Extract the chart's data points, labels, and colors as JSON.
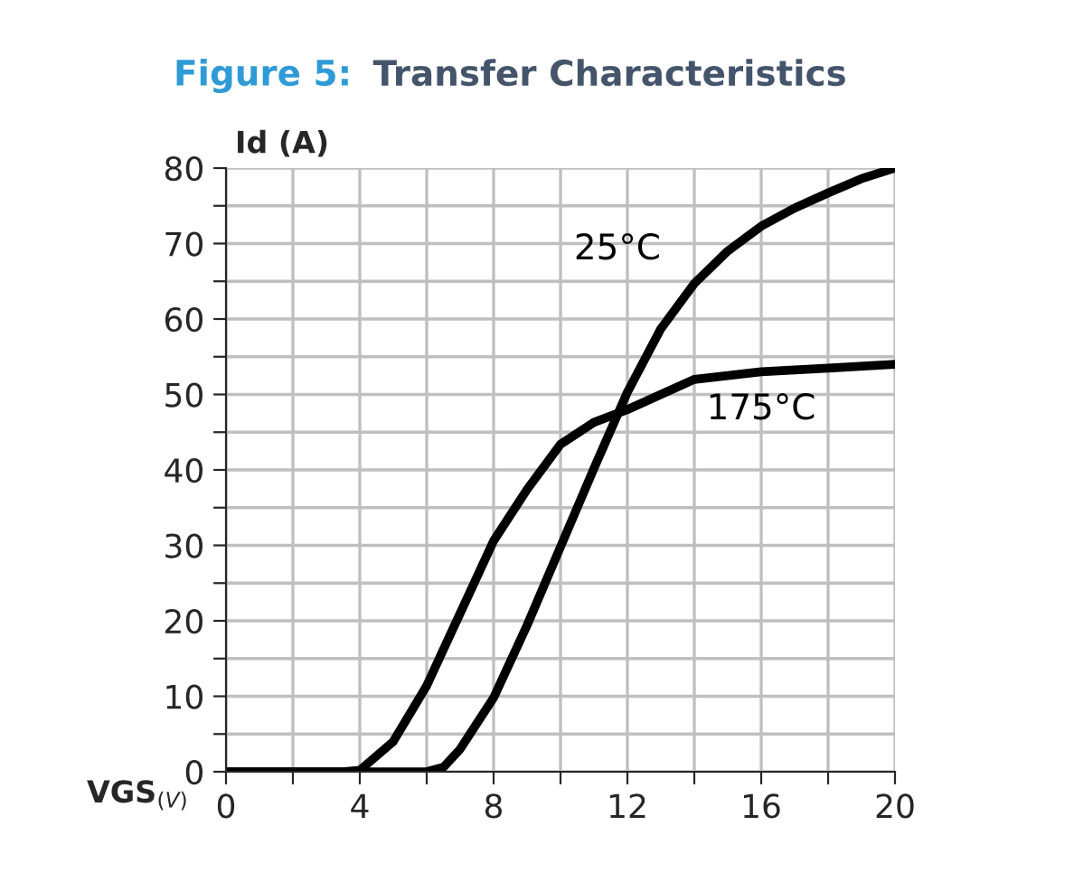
{
  "chart_data": {
    "type": "line",
    "title": "Figure 5: Transfer Characteristics",
    "xlabel": "VGS$_{(V)}$",
    "ylabel": "Id (A)",
    "series": [
      {
        "name": "25°C",
        "color": "#000000",
        "x": [
          0,
          4,
          5,
          6,
          6.5,
          7,
          8,
          9,
          10,
          11,
          12,
          13,
          14,
          15,
          16,
          17,
          18,
          19,
          20
        ],
        "values": [
          0,
          0,
          0,
          0,
          0.6,
          3,
          9.8,
          19.4,
          29.8,
          40.2,
          50.3,
          58.7,
          64.7,
          69,
          72.3,
          74.7,
          76.7,
          78.6,
          80
        ]
      },
      {
        "name": "175°C",
        "color": "#000000",
        "x": [
          0,
          3.5,
          4,
          5,
          6,
          7,
          8,
          9,
          10,
          11,
          12,
          13,
          14,
          16,
          18,
          20
        ],
        "values": [
          0,
          0,
          0.2,
          4,
          11.4,
          21,
          30.6,
          37.4,
          43.4,
          46.3,
          48,
          50,
          52,
          53,
          53.5,
          54
        ]
      }
    ],
    "xlim": [
      0,
      20
    ],
    "ylim": [
      0,
      80
    ],
    "xticks": [
      0,
      {
        "value": 2,
        "label": null
      },
      4,
      {
        "value": 6,
        "label": null
      },
      8,
      {
        "value": 10,
        "label": null
      },
      12,
      {
        "value": 14,
        "label": null
      },
      16,
      {
        "value": 18,
        "label": null
      },
      20
    ],
    "yticks": [
      0,
      {
        "value": 5,
        "label": null
      },
      10,
      {
        "value": 15,
        "label": null
      },
      20,
      {
        "value": 25,
        "label": null
      },
      30,
      {
        "value": 35,
        "label": null
      },
      40,
      {
        "value": 45,
        "label": null
      },
      50,
      {
        "value": 55,
        "label": null
      },
      60,
      {
        "value": 65,
        "label": null
      },
      70,
      {
        "value": 75,
        "label": null
      },
      80
    ],
    "grid": true,
    "legend": false,
    "line_style": "solid",
    "marker": "none"
  }
}
